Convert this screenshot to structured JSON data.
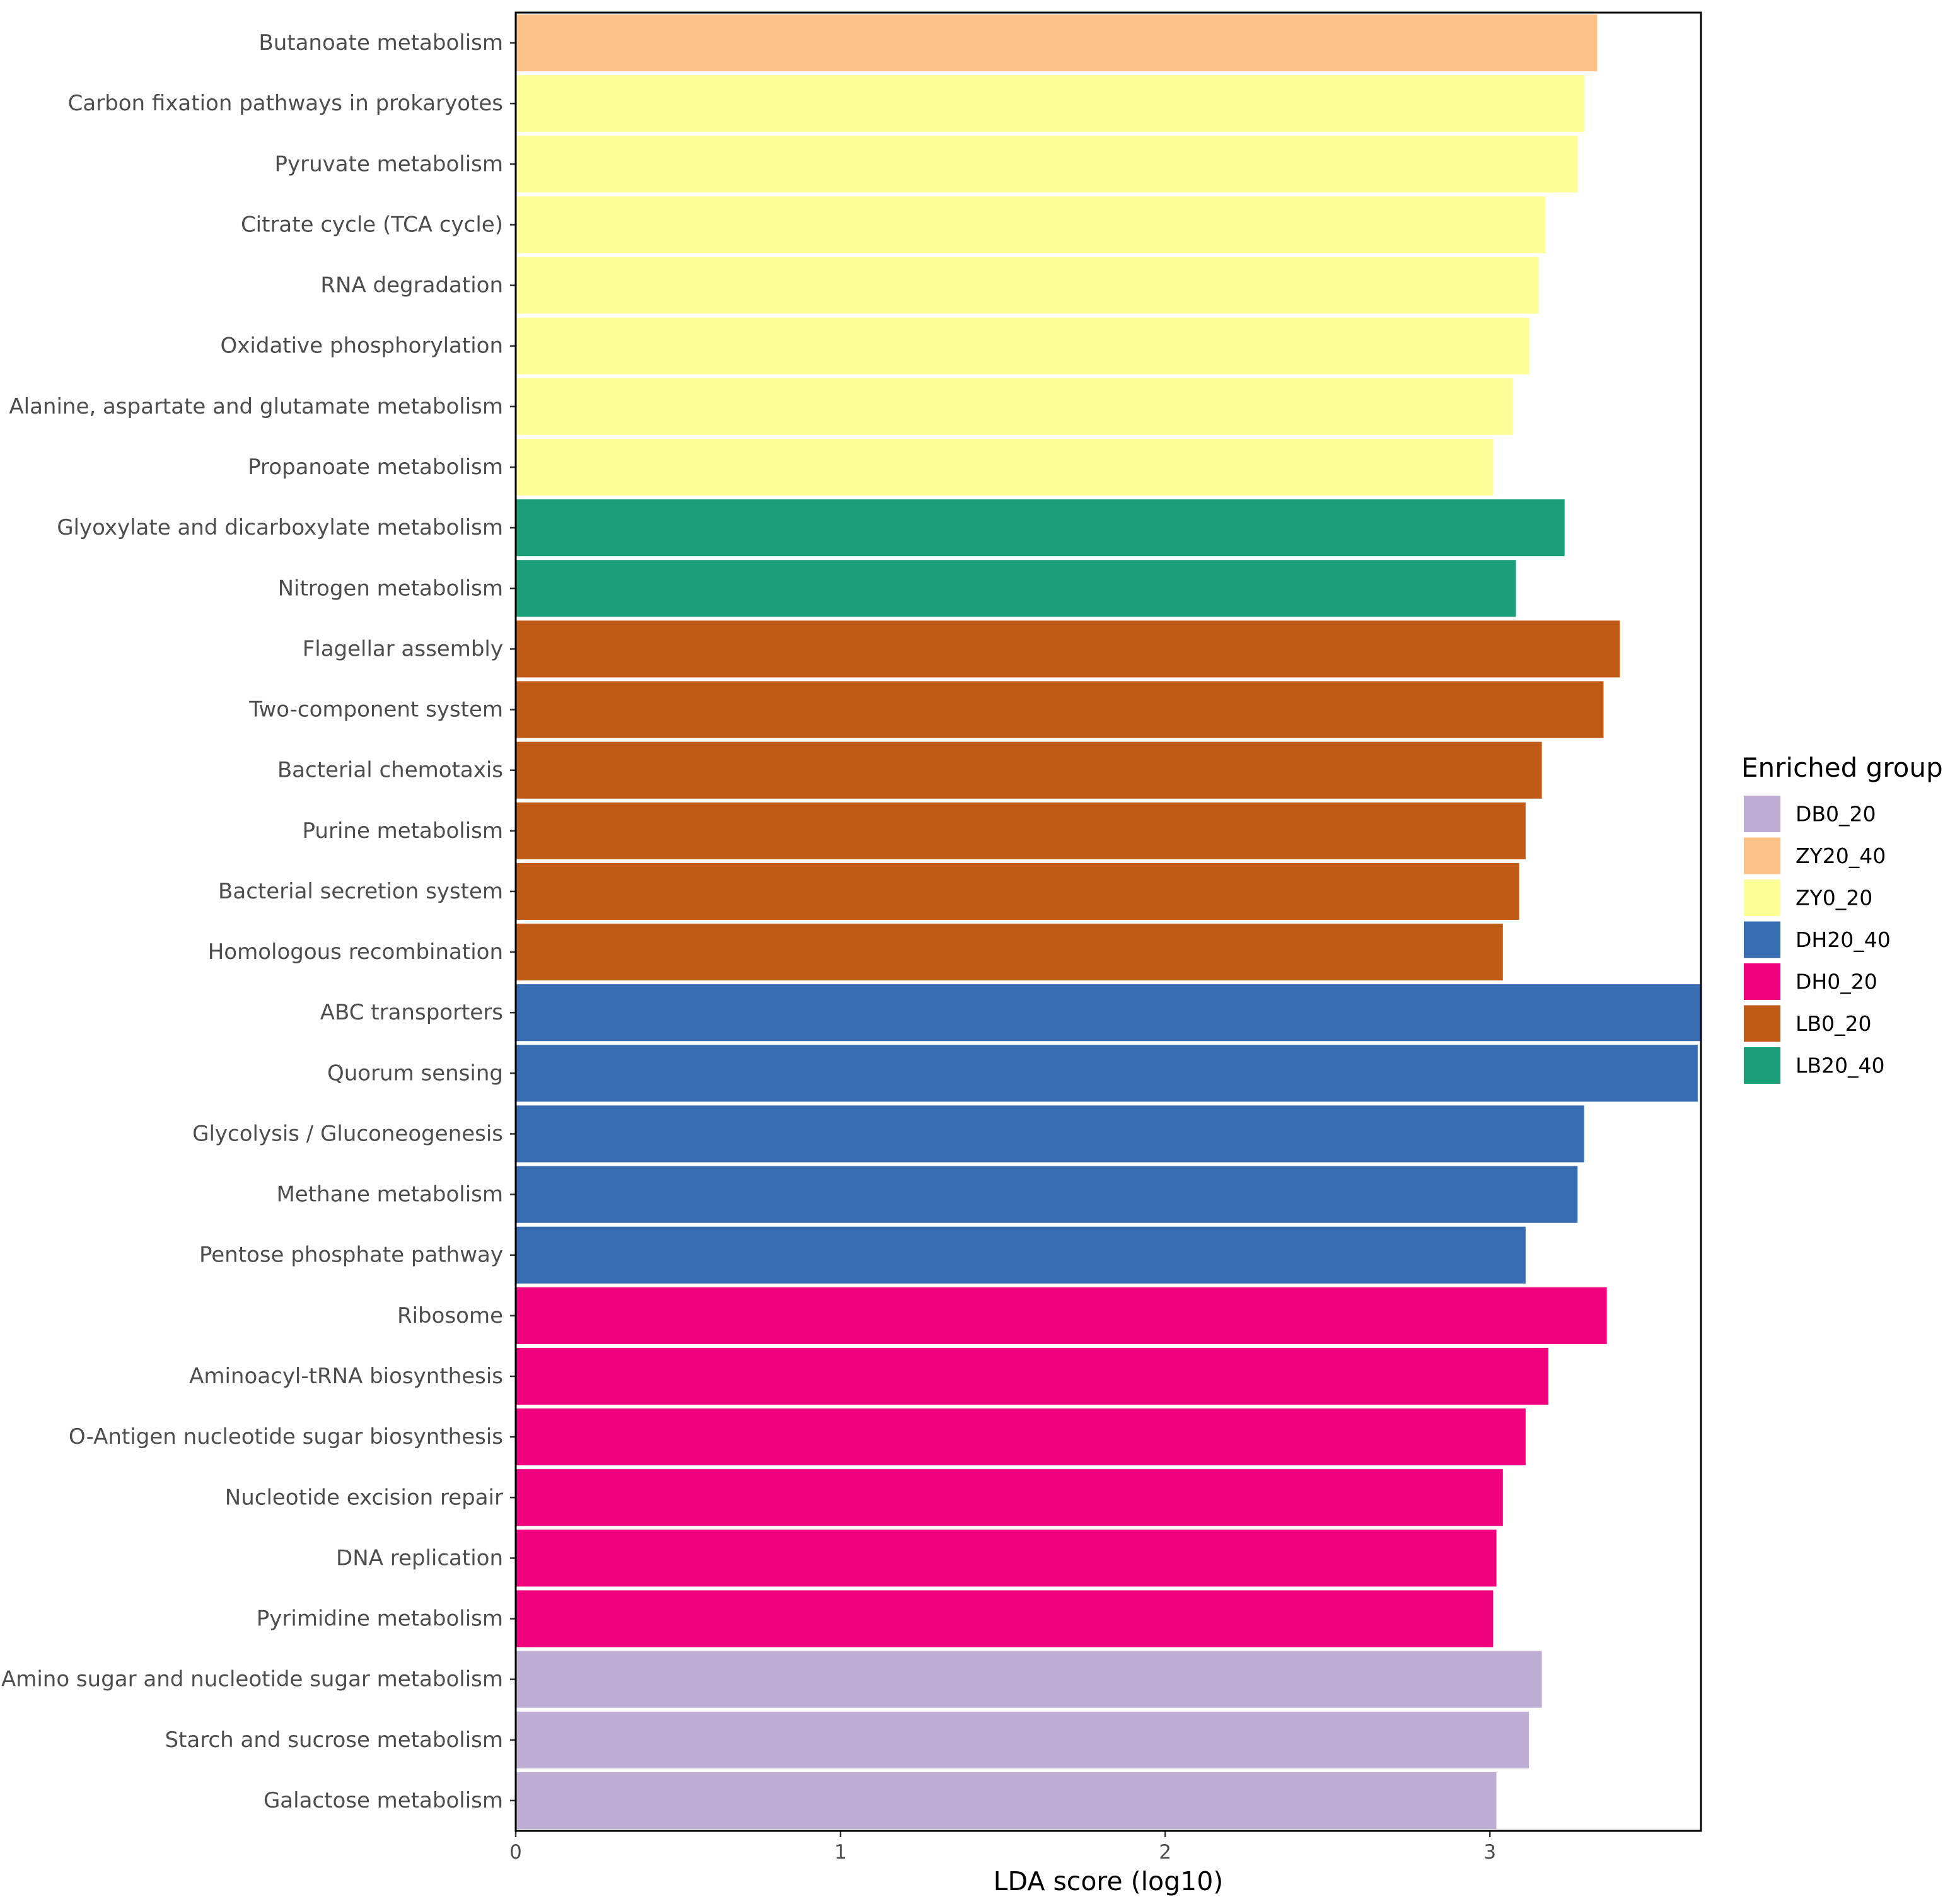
{
  "chart_data": {
    "type": "bar",
    "orientation": "horizontal",
    "xlabel": "LDA score (log10)",
    "ylabel": "",
    "xlim": [
      0,
      3.65
    ],
    "xticks": [
      0,
      1,
      2,
      3
    ],
    "grid": false,
    "legend": {
      "title": "Enriched group",
      "position": "right",
      "items": [
        {
          "label": "DB0_20",
          "color": "#BEAED4"
        },
        {
          "label": "ZY20_40",
          "color": "#FDC086"
        },
        {
          "label": "ZY0_20",
          "color": "#FFFF99"
        },
        {
          "label": "DH20_40",
          "color": "#386CB0"
        },
        {
          "label": "DH0_20",
          "color": "#F0027F"
        },
        {
          "label": "LB0_20",
          "color": "#BF5B17"
        },
        {
          "label": "LB20_40",
          "color": "#1B9E77"
        }
      ]
    },
    "bars": [
      {
        "label": "Butanoate metabolism",
        "value": 3.33,
        "group": "ZY20_40"
      },
      {
        "label": "Carbon fixation pathways in prokaryotes",
        "value": 3.29,
        "group": "ZY0_20"
      },
      {
        "label": "Pyruvate metabolism",
        "value": 3.27,
        "group": "ZY0_20"
      },
      {
        "label": "Citrate cycle (TCA cycle)",
        "value": 3.17,
        "group": "ZY0_20"
      },
      {
        "label": "RNA degradation",
        "value": 3.15,
        "group": "ZY0_20"
      },
      {
        "label": "Oxidative phosphorylation",
        "value": 3.12,
        "group": "ZY0_20"
      },
      {
        "label": "Alanine, aspartate and glutamate metabolism",
        "value": 3.07,
        "group": "ZY0_20"
      },
      {
        "label": "Propanoate metabolism",
        "value": 3.01,
        "group": "ZY0_20"
      },
      {
        "label": "Glyoxylate and dicarboxylate metabolism",
        "value": 3.23,
        "group": "LB20_40"
      },
      {
        "label": "Nitrogen metabolism",
        "value": 3.08,
        "group": "LB20_40"
      },
      {
        "label": "Flagellar assembly",
        "value": 3.4,
        "group": "LB0_20"
      },
      {
        "label": "Two-component system",
        "value": 3.35,
        "group": "LB0_20"
      },
      {
        "label": "Bacterial chemotaxis",
        "value": 3.16,
        "group": "LB0_20"
      },
      {
        "label": "Purine metabolism",
        "value": 3.11,
        "group": "LB0_20"
      },
      {
        "label": "Bacterial secretion system",
        "value": 3.09,
        "group": "LB0_20"
      },
      {
        "label": "Homologous recombination",
        "value": 3.04,
        "group": "LB0_20"
      },
      {
        "label": "ABC transporters",
        "value": 3.65,
        "group": "DH20_40"
      },
      {
        "label": "Quorum sensing",
        "value": 3.64,
        "group": "DH20_40"
      },
      {
        "label": "Glycolysis / Gluconeogenesis",
        "value": 3.29,
        "group": "DH20_40"
      },
      {
        "label": "Methane metabolism",
        "value": 3.27,
        "group": "DH20_40"
      },
      {
        "label": "Pentose phosphate pathway",
        "value": 3.11,
        "group": "DH20_40"
      },
      {
        "label": "Ribosome",
        "value": 3.36,
        "group": "DH0_20"
      },
      {
        "label": "Aminoacyl-tRNA biosynthesis",
        "value": 3.18,
        "group": "DH0_20"
      },
      {
        "label": "O-Antigen nucleotide sugar biosynthesis",
        "value": 3.11,
        "group": "DH0_20"
      },
      {
        "label": "Nucleotide excision repair",
        "value": 3.04,
        "group": "DH0_20"
      },
      {
        "label": "DNA replication",
        "value": 3.02,
        "group": "DH0_20"
      },
      {
        "label": "Pyrimidine metabolism",
        "value": 3.01,
        "group": "DH0_20"
      },
      {
        "label": "Amino sugar and nucleotide sugar metabolism",
        "value": 3.16,
        "group": "DB0_20"
      },
      {
        "label": "Starch and sucrose metabolism",
        "value": 3.12,
        "group": "DB0_20"
      },
      {
        "label": "Galactose metabolism",
        "value": 3.02,
        "group": "DB0_20"
      }
    ]
  }
}
